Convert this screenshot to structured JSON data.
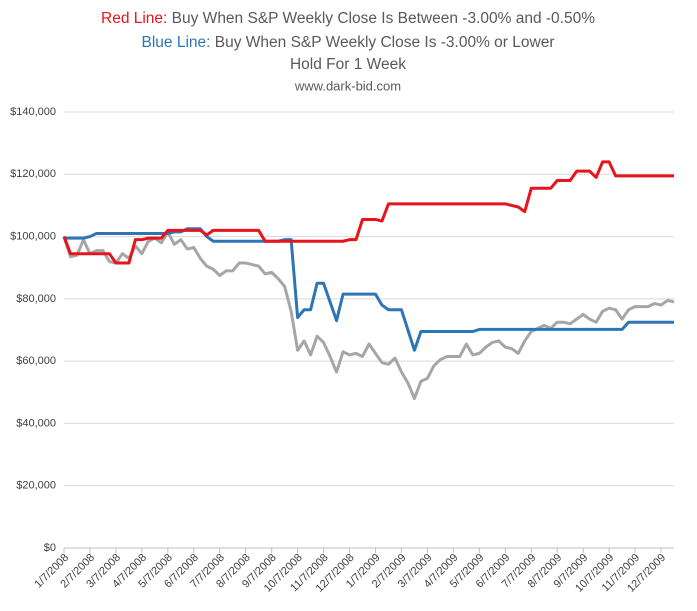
{
  "chart_data": {
    "type": "line",
    "title_red_label": "Red Line:",
    "title_red_text": "Buy When S&P Weekly Close Is Between -3.00% and -0.50%",
    "title_blue_label": "Blue Line:",
    "title_blue_text": "Buy When S&P Weekly Close Is -3.00% or Lower",
    "title_hold": "Hold For 1 Week",
    "subtitle": "www.dark-bid.com",
    "title_red_color": "#e8141b",
    "title_blue_color": "#2e75b6",
    "categories": [
      "1/7/2008",
      null,
      null,
      null,
      "2/7/2008",
      null,
      null,
      null,
      "3/7/2008",
      null,
      null,
      null,
      "4/7/2008",
      null,
      null,
      null,
      "5/7/2008",
      null,
      null,
      null,
      "6/7/2008",
      null,
      null,
      null,
      "7/7/2008",
      null,
      null,
      null,
      "8/7/2008",
      null,
      null,
      null,
      "9/7/2008",
      null,
      null,
      null,
      "10/7/2008",
      null,
      null,
      null,
      "11/7/2008",
      null,
      null,
      null,
      "12/7/2008",
      null,
      null,
      null,
      "1/7/2009",
      null,
      null,
      null,
      "2/7/2009",
      null,
      null,
      null,
      "3/7/2009",
      null,
      null,
      null,
      "4/7/2009",
      null,
      null,
      null,
      "5/7/2009",
      null,
      null,
      null,
      "6/7/2009",
      null,
      null,
      null,
      "7/7/2009",
      null,
      null,
      null,
      "8/7/2009",
      null,
      null,
      null,
      "9/7/2009",
      null,
      null,
      null,
      "10/7/2009",
      null,
      null,
      null,
      "11/7/2009",
      null,
      null,
      null,
      "12/7/2009",
      null,
      null
    ],
    "series": [
      {
        "color": "#a6a6a6",
        "values": [
          100000,
          93500,
          94000,
          99000,
          94500,
          95500,
          95500,
          92000,
          91500,
          94500,
          93000,
          97000,
          94500,
          98500,
          99500,
          98000,
          101500,
          97500,
          99000,
          96000,
          96500,
          93000,
          90500,
          89500,
          87500,
          89000,
          89000,
          91500,
          91500,
          91000,
          90500,
          88000,
          88500,
          86500,
          84000,
          76000,
          63500,
          66500,
          62000,
          68000,
          66000,
          61500,
          56500,
          63000,
          62000,
          62500,
          61500,
          65500,
          62500,
          59500,
          59000,
          61000,
          56500,
          53000,
          48000,
          53500,
          54500,
          58500,
          60500,
          61500,
          61500,
          61500,
          65500,
          62000,
          62500,
          64500,
          66000,
          66500,
          64500,
          64000,
          62500,
          66500,
          69500,
          70500,
          71500,
          70500,
          72500,
          72500,
          72000,
          73500,
          75000,
          73500,
          72500,
          76000,
          77000,
          76500,
          73500,
          76500,
          77500,
          77500,
          77500,
          78500,
          78000,
          79500,
          79000
        ]
      },
      {
        "color": "#2e75b6",
        "values": [
          99500,
          99500,
          99500,
          99500,
          100000,
          101000,
          101000,
          101000,
          101000,
          101000,
          101000,
          101000,
          101000,
          101000,
          101000,
          101000,
          101000,
          101500,
          101500,
          102500,
          102500,
          102500,
          100000,
          98500,
          98500,
          98500,
          98500,
          98500,
          98500,
          98500,
          98500,
          98500,
          98500,
          98500,
          99000,
          99000,
          74000,
          76500,
          76500,
          85000,
          85000,
          79000,
          73000,
          81500,
          81500,
          81500,
          81500,
          81500,
          81500,
          78000,
          76500,
          76500,
          76500,
          70000,
          63500,
          69500,
          69500,
          69500,
          69500,
          69500,
          69500,
          69500,
          69500,
          69500,
          70200,
          70200,
          70200,
          70200,
          70200,
          70200,
          70200,
          70200,
          70200,
          70200,
          70200,
          70200,
          70200,
          70200,
          70200,
          70200,
          70200,
          70200,
          70200,
          70200,
          70200,
          70200,
          70200,
          72500,
          72500,
          72500,
          72500,
          72500,
          72500,
          72500,
          72500
        ]
      },
      {
        "color": "#e8141b",
        "values": [
          100000,
          94500,
          94500,
          94500,
          94500,
          94500,
          94500,
          94500,
          91500,
          91500,
          91500,
          99000,
          99000,
          99500,
          99500,
          99500,
          102000,
          102000,
          102000,
          102000,
          102000,
          102000,
          100500,
          102000,
          102000,
          102000,
          102000,
          102000,
          102000,
          102000,
          102000,
          98500,
          98500,
          98500,
          98500,
          98500,
          98500,
          98500,
          98500,
          98500,
          98500,
          98500,
          98500,
          98500,
          99000,
          99000,
          105500,
          105500,
          105500,
          105000,
          110500,
          110500,
          110500,
          110500,
          110500,
          110500,
          110500,
          110500,
          110500,
          110500,
          110500,
          110500,
          110500,
          110500,
          110500,
          110500,
          110500,
          110500,
          110500,
          110000,
          109500,
          108000,
          115500,
          115500,
          115500,
          115500,
          118000,
          118000,
          118000,
          121000,
          121000,
          121000,
          119000,
          124000,
          124000,
          119500,
          119500,
          119500,
          119500,
          119500,
          119500,
          119500,
          119500,
          119500,
          119500
        ]
      }
    ],
    "ylim": [
      0,
      140000
    ],
    "yticks": [
      {
        "value": 0,
        "label": "$0"
      },
      {
        "value": 20000,
        "label": "$20,000"
      },
      {
        "value": 40000,
        "label": "$40,000"
      },
      {
        "value": 60000,
        "label": "$60,000"
      },
      {
        "value": 80000,
        "label": "$80,000"
      },
      {
        "value": 100000,
        "label": "$100,000"
      },
      {
        "value": 120000,
        "label": "$120,000"
      },
      {
        "value": 140000,
        "label": "$140,000"
      }
    ],
    "grid": true
  }
}
